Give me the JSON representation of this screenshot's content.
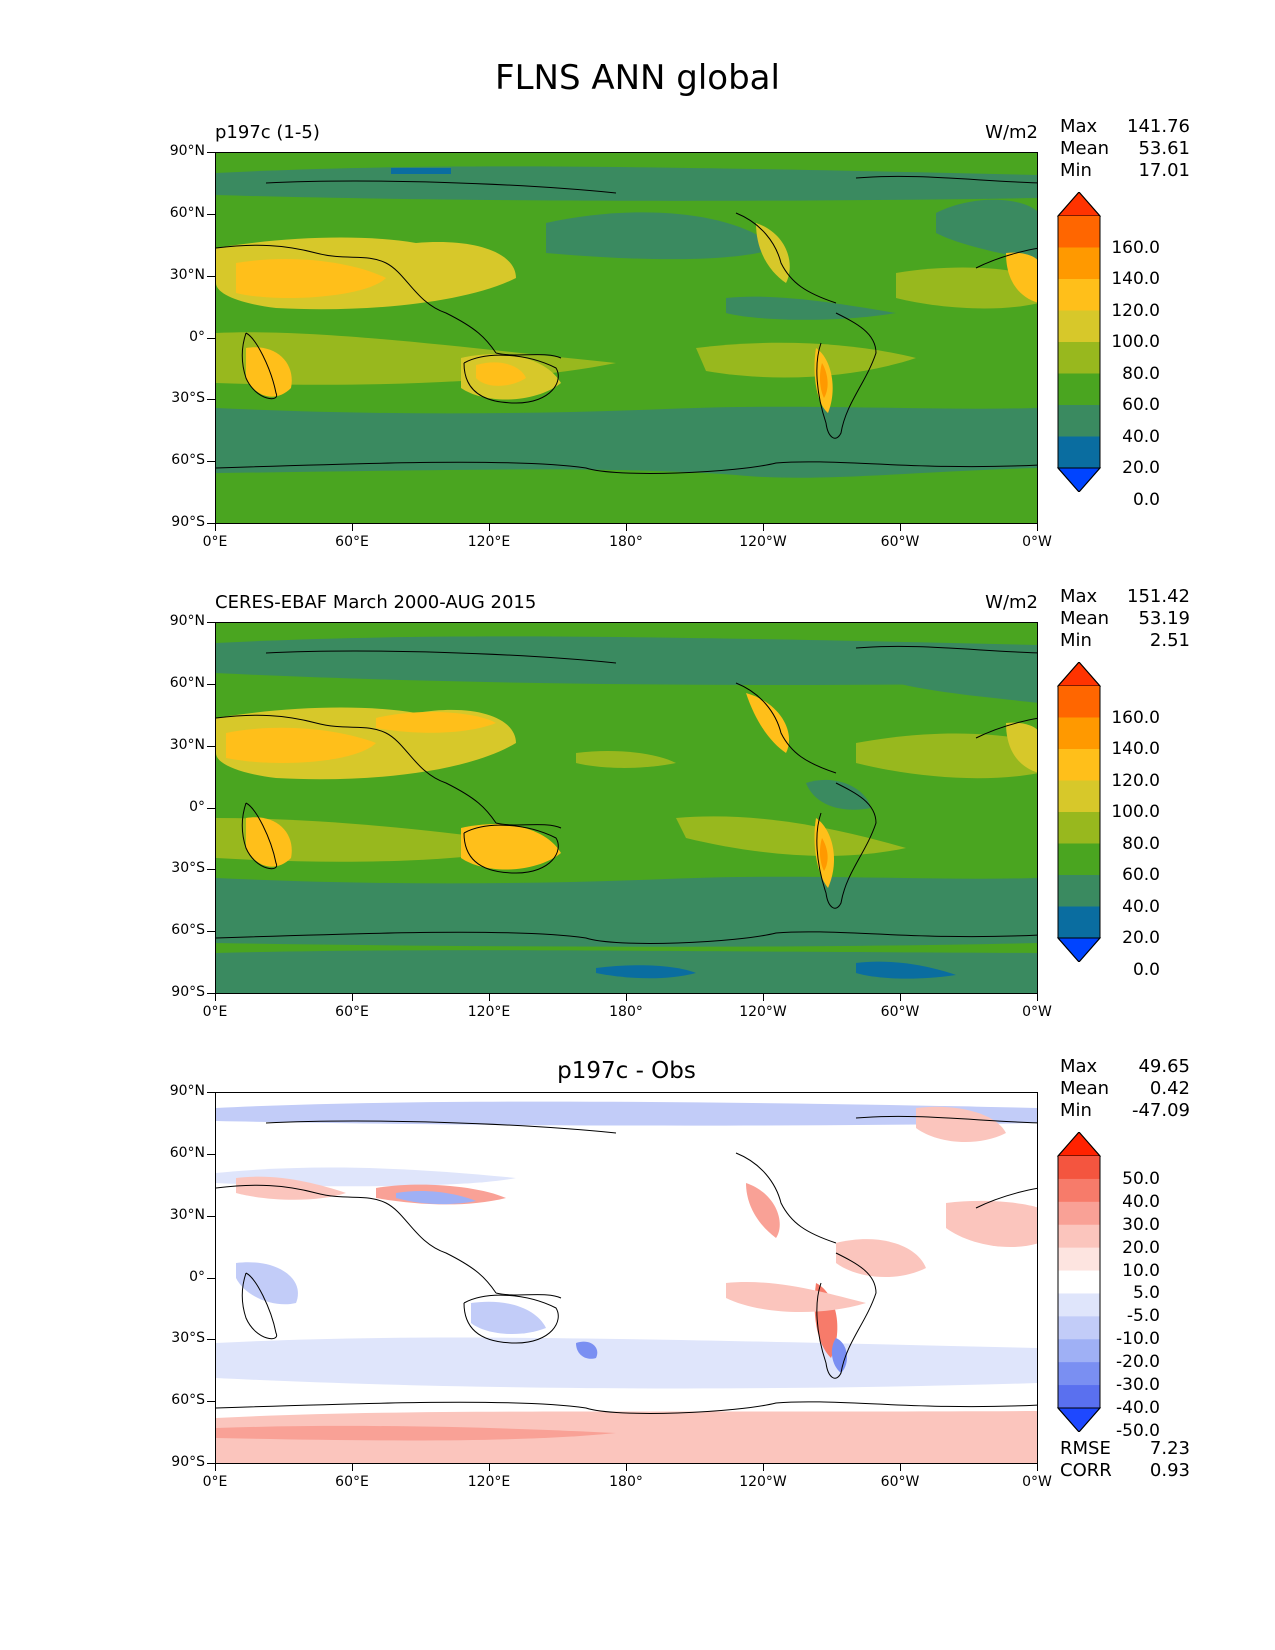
{
  "title": "FLNS ANN global",
  "x_ticks": [
    "0°E",
    "60°E",
    "120°E",
    "180°",
    "120°W",
    "60°W",
    "0°W"
  ],
  "y_ticks": [
    "90°N",
    "60°N",
    "30°N",
    "0°",
    "30°S",
    "60°S",
    "90°S"
  ],
  "panels": [
    {
      "left_title": "p197c (1-5)",
      "right_title": "W/m2",
      "center_title": "",
      "stats": [
        [
          "Max",
          "141.76"
        ],
        [
          "Mean",
          "53.61"
        ],
        [
          "Min",
          "17.01"
        ]
      ],
      "colorbar_labels": [
        "160.0",
        "140.0",
        "120.0",
        "100.0",
        "80.0",
        "60.0",
        "40.0",
        "20.0",
        "0.0"
      ],
      "colorbar_colors": [
        "#ff3300",
        "#ff6600",
        "#ff9900",
        "#ffbf1a",
        "#d7c82a",
        "#98b81e",
        "#4aa520",
        "#3a8a60",
        "#0a6da0",
        "#0044ff"
      ]
    },
    {
      "left_title": "CERES-EBAF March 2000-AUG 2015",
      "right_title": "W/m2",
      "center_title": "",
      "stats": [
        [
          "Max",
          "151.42"
        ],
        [
          "Mean",
          "53.19"
        ],
        [
          "Min",
          "2.51"
        ]
      ],
      "colorbar_labels": [
        "160.0",
        "140.0",
        "120.0",
        "100.0",
        "80.0",
        "60.0",
        "40.0",
        "20.0",
        "0.0"
      ],
      "colorbar_colors": [
        "#ff3300",
        "#ff6600",
        "#ff9900",
        "#ffbf1a",
        "#d7c82a",
        "#98b81e",
        "#4aa520",
        "#3a8a60",
        "#0a6da0",
        "#0044ff"
      ]
    },
    {
      "left_title": "",
      "right_title": "",
      "center_title": "p197c - Obs",
      "stats": [
        [
          "Max",
          "49.65"
        ],
        [
          "Mean",
          "0.42"
        ],
        [
          "Min",
          "-47.09"
        ]
      ],
      "colorbar_labels": [
        "50.0",
        "40.0",
        "30.0",
        "20.0",
        "10.0",
        "5.0",
        "-5.0",
        "-10.0",
        "-20.0",
        "-30.0",
        "-40.0",
        "-50.0"
      ],
      "colorbar_colors": [
        "#ff2200",
        "#f4553f",
        "#f77b6a",
        "#f9a196",
        "#fbc5bd",
        "#fde4e0",
        "#ffffff",
        "#dfe5fb",
        "#c2ccf8",
        "#9fb0f5",
        "#7a8ff2",
        "#5a70ef",
        "#1e48ff"
      ],
      "rmse": [
        "RMSE",
        "7.23"
      ],
      "corr": [
        "CORR",
        "0.93"
      ]
    }
  ],
  "chart_data": [
    {
      "type": "heatmap",
      "title": "p197c (1-5)",
      "units": "W/m2",
      "x_range": [
        "0°E",
        "0°W"
      ],
      "y_range": [
        "90°S",
        "90°N"
      ],
      "levels": [
        0,
        20,
        40,
        60,
        80,
        100,
        120,
        140,
        160
      ],
      "max": 141.76,
      "mean": 53.61,
      "min": 17.01
    },
    {
      "type": "heatmap",
      "title": "CERES-EBAF March 2000-AUG 2015",
      "units": "W/m2",
      "x_range": [
        "0°E",
        "0°W"
      ],
      "y_range": [
        "90°S",
        "90°N"
      ],
      "levels": [
        0,
        20,
        40,
        60,
        80,
        100,
        120,
        140,
        160
      ],
      "max": 151.42,
      "mean": 53.19,
      "min": 2.51
    },
    {
      "type": "heatmap",
      "title": "p197c - Obs",
      "x_range": [
        "0°E",
        "0°W"
      ],
      "y_range": [
        "90°S",
        "90°N"
      ],
      "levels": [
        -50,
        -40,
        -30,
        -20,
        -10,
        -5,
        5,
        10,
        20,
        30,
        40,
        50
      ],
      "max": 49.65,
      "mean": 0.42,
      "min": -47.09,
      "rmse": 7.23,
      "corr": 0.93
    }
  ]
}
